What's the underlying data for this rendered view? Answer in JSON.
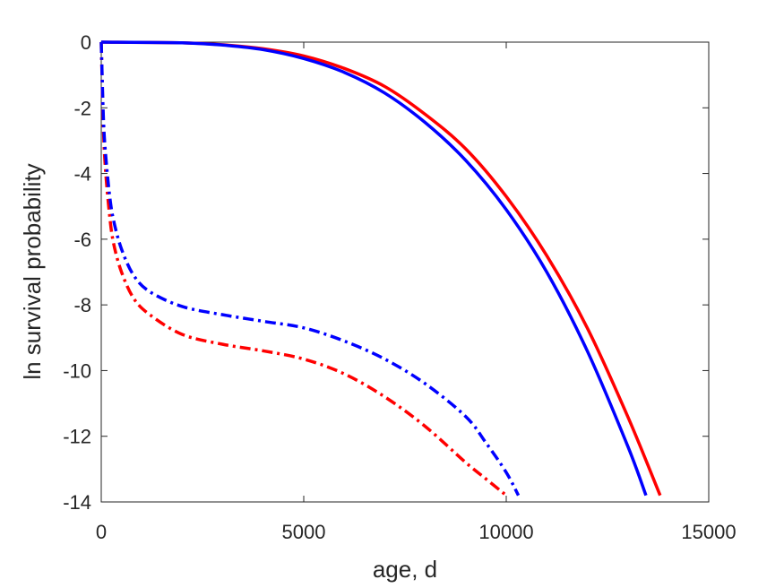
{
  "chart_data": {
    "type": "line",
    "title": "",
    "xlabel": "age, d",
    "ylabel": "ln survival probability",
    "xlim": [
      0,
      15000
    ],
    "ylim": [
      -14,
      0
    ],
    "xticks": [
      0,
      5000,
      10000,
      15000
    ],
    "yticks": [
      0,
      -2,
      -4,
      -6,
      -8,
      -10,
      -12,
      -14
    ],
    "grid": false,
    "legend": "none",
    "series": [
      {
        "color": "#ff0000",
        "style": "solid",
        "x": [
          0,
          2000,
          3000,
          4000,
          5000,
          6000,
          7000,
          8000,
          9000,
          10000,
          11000,
          12000,
          13000,
          13800
        ],
        "y": [
          0,
          -0.02,
          -0.08,
          -0.2,
          -0.42,
          -0.8,
          -1.35,
          -2.2,
          -3.25,
          -4.7,
          -6.5,
          -8.7,
          -11.4,
          -13.8
        ]
      },
      {
        "color": "#0000ff",
        "style": "solid",
        "x": [
          0,
          2000,
          3000,
          4000,
          5000,
          6000,
          7000,
          8000,
          9000,
          10000,
          11000,
          12000,
          13000,
          13450
        ],
        "y": [
          0,
          -0.02,
          -0.09,
          -0.23,
          -0.5,
          -0.92,
          -1.55,
          -2.45,
          -3.6,
          -5.1,
          -7.0,
          -9.4,
          -12.3,
          -13.8
        ]
      },
      {
        "color": "#ff0000",
        "style": "dash-dot",
        "x": [
          0,
          50,
          100,
          200,
          300,
          500,
          800,
          1200,
          2000,
          3000,
          4000,
          5000,
          6000,
          7000,
          8000,
          9000,
          9500,
          10000
        ],
        "y": [
          0,
          -2.5,
          -3.8,
          -5.2,
          -6.1,
          -7.0,
          -7.8,
          -8.3,
          -8.9,
          -9.2,
          -9.4,
          -9.65,
          -10.1,
          -10.8,
          -11.7,
          -12.8,
          -13.3,
          -13.8
        ]
      },
      {
        "color": "#0000ff",
        "style": "dash-dot",
        "x": [
          0,
          50,
          100,
          200,
          300,
          500,
          800,
          1200,
          2000,
          3000,
          4000,
          5000,
          6000,
          7000,
          8000,
          9000,
          9500,
          10000,
          10300
        ],
        "y": [
          0,
          -2.2,
          -3.3,
          -4.6,
          -5.4,
          -6.3,
          -7.1,
          -7.6,
          -8.05,
          -8.3,
          -8.5,
          -8.7,
          -9.1,
          -9.65,
          -10.4,
          -11.4,
          -12.2,
          -13.1,
          -13.8
        ]
      }
    ]
  }
}
